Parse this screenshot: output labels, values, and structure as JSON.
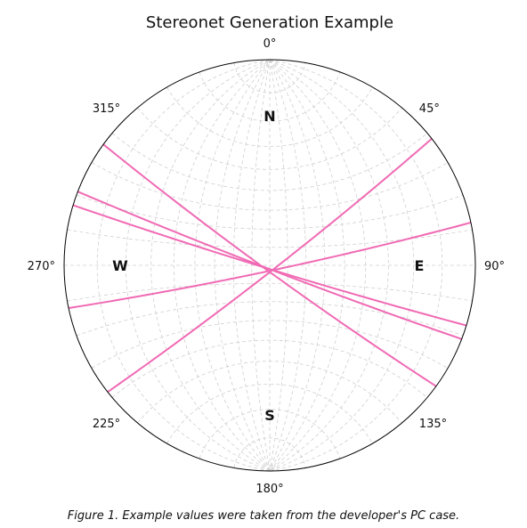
{
  "chart_data": {
    "type": "stereonet",
    "title": "Stereonet Generation Example",
    "caption": "Figure 1. Example values were taken from the developer's PC case.",
    "azimuth_ticks": [
      {
        "angle": 0,
        "label": "0°"
      },
      {
        "angle": 45,
        "label": "45°"
      },
      {
        "angle": 90,
        "label": "90°"
      },
      {
        "angle": 135,
        "label": "135°"
      },
      {
        "angle": 180,
        "label": "180°"
      },
      {
        "angle": 225,
        "label": "225°"
      },
      {
        "angle": 270,
        "label": "270°"
      },
      {
        "angle": 315,
        "label": "315°"
      }
    ],
    "cardinals": [
      {
        "label": "N",
        "angle": 0
      },
      {
        "label": "E",
        "angle": 90
      },
      {
        "label": "S",
        "angle": 180
      },
      {
        "label": "W",
        "angle": 270
      }
    ],
    "grid": true,
    "planes": [
      {
        "strike": 52,
        "dip": 87
      },
      {
        "strike": 78,
        "dip": 87
      },
      {
        "strike": 107,
        "dip": 88
      },
      {
        "strike": 111,
        "dip": 88
      },
      {
        "strike": 126,
        "dip": 87
      }
    ],
    "line_color": "#f06ab4"
  }
}
